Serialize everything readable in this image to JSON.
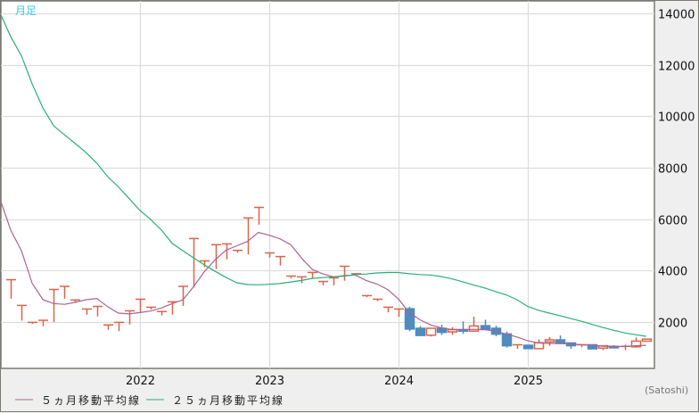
{
  "chart_data": {
    "type": "candlestick",
    "period_label": "月足",
    "unit_label": "(Satoshi)",
    "ylim": [
      200,
      14490
    ],
    "y_ticks": [
      2000,
      4000,
      6000,
      8000,
      10000,
      12000,
      14000
    ],
    "x_ticks": [
      {
        "label": "2022",
        "month": "2022-01"
      },
      {
        "label": "2023",
        "month": "2023-01"
      },
      {
        "label": "2024",
        "month": "2024-01"
      },
      {
        "label": "2025",
        "month": "2025-01"
      }
    ],
    "grid": true,
    "y_axis_position": "right",
    "legend_position": "bottom-left",
    "colors": {
      "up": "#d9654a",
      "down": "#4d8bc0",
      "ma5": "#b0608f",
      "ma25": "#2aae78",
      "grid": "#dddddd"
    },
    "months": [
      "2021-01",
      "2021-02",
      "2021-03",
      "2021-04",
      "2021-05",
      "2021-06",
      "2021-07",
      "2021-08",
      "2021-09",
      "2021-10",
      "2021-11",
      "2021-12",
      "2022-01",
      "2022-02",
      "2022-03",
      "2022-04",
      "2022-05",
      "2022-06",
      "2022-07",
      "2022-08",
      "2022-09",
      "2022-10",
      "2022-11",
      "2022-12",
      "2023-01",
      "2023-02",
      "2023-03",
      "2023-04",
      "2023-05",
      "2023-06",
      "2023-07",
      "2023-08",
      "2023-09",
      "2023-10",
      "2023-11",
      "2023-12",
      "2024-01",
      "2024-02",
      "2024-03",
      "2024-04",
      "2024-05",
      "2024-06",
      "2024-07",
      "2024-08",
      "2024-09",
      "2024-10",
      "2024-11",
      "2024-12",
      "2025-01",
      "2025-02",
      "2025-03",
      "2025-04",
      "2025-05",
      "2025-06",
      "2025-07",
      "2025-08",
      "2025-09",
      "2025-10",
      "2025-11",
      "2025-12"
    ],
    "ohlc": [
      [
        3650,
        3650,
        2910,
        3650
      ],
      [
        2650,
        2650,
        2060,
        2650
      ],
      [
        1990,
        1990,
        1930,
        1990
      ],
      [
        2070,
        2070,
        1840,
        2070
      ],
      [
        3270,
        3270,
        2000,
        3270
      ],
      [
        3390,
        3390,
        2910,
        3390
      ],
      [
        2860,
        2860,
        2750,
        2860
      ],
      [
        2510,
        2510,
        2290,
        2510
      ],
      [
        2610,
        2610,
        2220,
        2610
      ],
      [
        1890,
        1890,
        1700,
        1890
      ],
      [
        1990,
        1990,
        1650,
        1990
      ],
      [
        2440,
        2440,
        1910,
        2440
      ],
      [
        2890,
        2890,
        2370,
        2890
      ],
      [
        2580,
        2580,
        2490,
        2580
      ],
      [
        2410,
        2410,
        2260,
        2410
      ],
      [
        2790,
        2790,
        2290,
        2790
      ],
      [
        3390,
        3390,
        2630,
        3390
      ],
      [
        5250,
        5250,
        3350,
        5250
      ],
      [
        4380,
        4380,
        4140,
        4380
      ],
      [
        5010,
        5010,
        4060,
        5010
      ],
      [
        5040,
        5040,
        4440,
        5040
      ],
      [
        4790,
        4790,
        4700,
        4790
      ],
      [
        6050,
        6050,
        4630,
        6050
      ],
      [
        6460,
        6460,
        5790,
        6460
      ],
      [
        4690,
        4690,
        4510,
        4690
      ],
      [
        4550,
        4550,
        4200,
        4550
      ],
      [
        3790,
        3790,
        3710,
        3790
      ],
      [
        3760,
        3760,
        3520,
        3760
      ],
      [
        3930,
        3930,
        3680,
        3930
      ],
      [
        3580,
        3580,
        3430,
        3580
      ],
      [
        3720,
        3720,
        3430,
        3720
      ],
      [
        4170,
        4170,
        3610,
        4170
      ],
      [
        3880,
        3880,
        3830,
        3880
      ],
      [
        3030,
        3030,
        2970,
        3030
      ],
      [
        2890,
        2890,
        2810,
        2890
      ],
      [
        2580,
        2580,
        2380,
        2580
      ],
      [
        2510,
        2510,
        2210,
        2510
      ],
      [
        2520,
        2600,
        1650,
        1730
      ],
      [
        1760,
        1850,
        1470,
        1480
      ],
      [
        1490,
        1760,
        1440,
        1760
      ],
      [
        1760,
        1900,
        1500,
        1600
      ],
      [
        1620,
        1800,
        1500,
        1710
      ],
      [
        1710,
        2030,
        1540,
        1650
      ],
      [
        1650,
        2210,
        1620,
        1850
      ],
      [
        1860,
        2090,
        1710,
        1710
      ],
      [
        1760,
        1860,
        1450,
        1530
      ],
      [
        1540,
        1630,
        1010,
        1080
      ],
      [
        1120,
        1120,
        960,
        1120
      ],
      [
        1100,
        1100,
        970,
        970
      ],
      [
        970,
        1330,
        970,
        1200
      ],
      [
        1230,
        1420,
        1080,
        1310
      ],
      [
        1310,
        1480,
        1170,
        1170
      ],
      [
        1190,
        1190,
        960,
        1080
      ],
      [
        1100,
        1120,
        1020,
        1120
      ],
      [
        1120,
        1130,
        950,
        960
      ],
      [
        990,
        1090,
        910,
        1080
      ],
      [
        1060,
        1100,
        1000,
        1000
      ],
      [
        1020,
        1120,
        910,
        1060
      ],
      [
        1040,
        1400,
        1010,
        1260
      ],
      [
        1260,
        1360,
        1240,
        1340
      ]
    ],
    "series": [
      {
        "name": "５ヵ月移動平均線",
        "start_value": 6680,
        "values": [
          5580,
          4770,
          3500,
          2870,
          2720,
          2690,
          2770,
          2870,
          2920,
          2600,
          2350,
          2320,
          2370,
          2430,
          2550,
          2720,
          2870,
          3390,
          3970,
          4430,
          4800,
          4970,
          5140,
          5490,
          5380,
          5240,
          5010,
          4490,
          4050,
          3870,
          3760,
          3810,
          3830,
          3620,
          3480,
          3270,
          2900,
          2370,
          2090,
          1890,
          1770,
          1710,
          1710,
          1720,
          1710,
          1650,
          1540,
          1420,
          1280,
          1190,
          1170,
          1170,
          1150,
          1120,
          1100,
          1060,
          1050,
          1050,
          1080,
          1100
        ]
      },
      {
        "name": "２５ヵ月移動平均線",
        "start_value": 13950,
        "values": [
          13100,
          12350,
          11250,
          10320,
          9630,
          9280,
          8940,
          8590,
          8180,
          7660,
          7260,
          6800,
          6340,
          5990,
          5580,
          5060,
          4770,
          4490,
          4220,
          3970,
          3730,
          3530,
          3460,
          3450,
          3470,
          3500,
          3560,
          3620,
          3700,
          3730,
          3760,
          3790,
          3850,
          3870,
          3910,
          3930,
          3930,
          3880,
          3850,
          3830,
          3770,
          3680,
          3560,
          3440,
          3330,
          3190,
          3060,
          2870,
          2610,
          2460,
          2350,
          2250,
          2140,
          2030,
          1910,
          1790,
          1680,
          1580,
          1510,
          1450
        ]
      }
    ]
  }
}
